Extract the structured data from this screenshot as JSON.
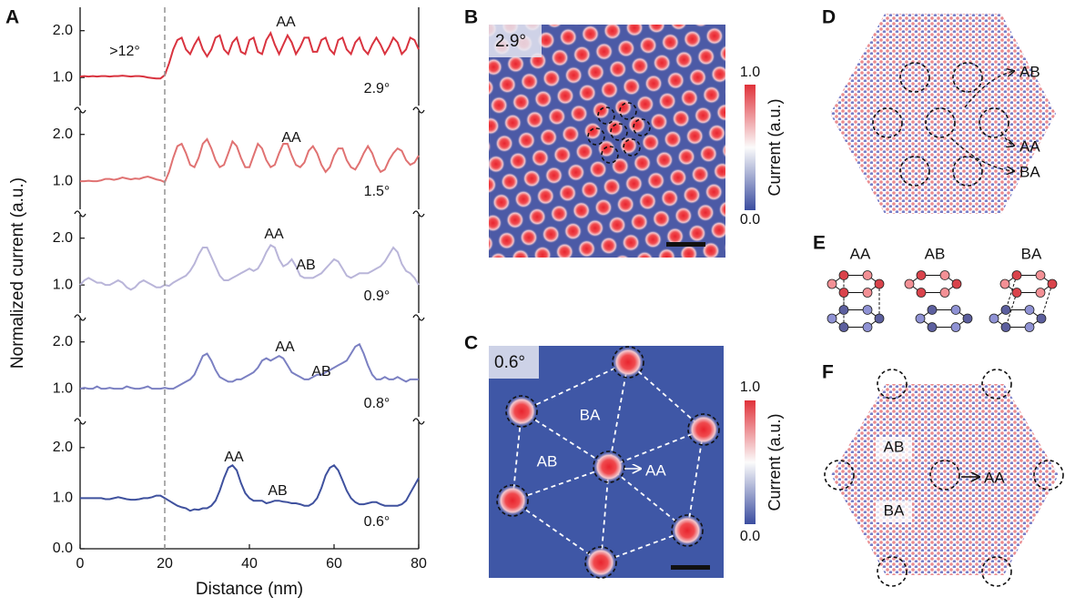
{
  "chart_data": {
    "type": "line",
    "label": "A",
    "xlabel": "Distance (nm)",
    "ylabel": "Normalized current (a.u.)",
    "xlim": [
      0,
      80
    ],
    "xticks": [
      0,
      20,
      40,
      60,
      80
    ],
    "vline": 20,
    "x": [
      0,
      1,
      2,
      3,
      4,
      5,
      6,
      7,
      8,
      9,
      10,
      11,
      12,
      13,
      14,
      15,
      16,
      17,
      18,
      19,
      20,
      21,
      22,
      23,
      24,
      25,
      26,
      27,
      28,
      29,
      30,
      31,
      32,
      33,
      34,
      35,
      36,
      37,
      38,
      39,
      40,
      41,
      42,
      43,
      44,
      45,
      46,
      47,
      48,
      49,
      50,
      51,
      52,
      53,
      54,
      55,
      56,
      57,
      58,
      59,
      60,
      61,
      62,
      63,
      64,
      65,
      66,
      67,
      68,
      69,
      70,
      71,
      72,
      73,
      74,
      75,
      76,
      77,
      78,
      79,
      80
    ],
    "series": [
      {
        "name": "2.9°",
        "color": "#d9333f",
        "ylim": [
          0.4,
          2.5
        ],
        "yticks": [
          {
            "value": 1,
            "label": "1.0"
          },
          {
            "value": 2,
            "label": "2.0"
          }
        ],
        "annotations": [
          ">12°",
          "AA"
        ],
        "values": [
          1.02,
          1.03,
          1.02,
          1.03,
          1.02,
          1.03,
          1.03,
          1.02,
          1.03,
          1.03,
          1.04,
          1.03,
          1.02,
          1.03,
          1.03,
          1.02,
          1.0,
          0.99,
          0.98,
          0.98,
          1.05,
          1.3,
          1.6,
          1.8,
          1.85,
          1.6,
          1.5,
          1.7,
          1.85,
          1.6,
          1.45,
          1.6,
          1.85,
          1.9,
          1.6,
          1.5,
          1.75,
          1.85,
          1.55,
          1.5,
          1.8,
          1.85,
          1.55,
          1.5,
          1.8,
          1.95,
          1.7,
          1.5,
          1.7,
          1.9,
          1.75,
          1.5,
          1.65,
          1.85,
          1.85,
          1.55,
          1.55,
          1.8,
          1.85,
          1.6,
          1.5,
          1.8,
          1.85,
          1.6,
          1.5,
          1.75,
          1.85,
          1.6,
          1.5,
          1.7,
          1.85,
          1.7,
          1.5,
          1.65,
          1.85,
          1.75,
          1.5,
          1.6,
          1.85,
          1.8,
          1.6
        ]
      },
      {
        "name": "1.5°",
        "color": "#e07272",
        "ylim": [
          0.4,
          2.5
        ],
        "yticks": [
          {
            "value": 1,
            "label": "1.0"
          },
          {
            "value": 2,
            "label": "2.0"
          }
        ],
        "annotations": [
          "AA"
        ],
        "values": [
          1.0,
          1.0,
          1.01,
          1.0,
          1.0,
          1.02,
          1.05,
          1.05,
          1.03,
          1.05,
          1.08,
          1.06,
          1.04,
          1.06,
          1.05,
          1.08,
          1.1,
          1.07,
          1.04,
          1.02,
          0.98,
          1.2,
          1.5,
          1.75,
          1.8,
          1.6,
          1.35,
          1.3,
          1.5,
          1.8,
          1.9,
          1.7,
          1.45,
          1.3,
          1.35,
          1.6,
          1.85,
          1.75,
          1.5,
          1.3,
          1.3,
          1.55,
          1.8,
          1.7,
          1.45,
          1.3,
          1.35,
          1.6,
          1.8,
          1.8,
          1.55,
          1.35,
          1.3,
          1.4,
          1.65,
          1.75,
          1.6,
          1.35,
          1.2,
          1.3,
          1.55,
          1.7,
          1.7,
          1.45,
          1.3,
          1.25,
          1.4,
          1.6,
          1.75,
          1.6,
          1.35,
          1.2,
          1.25,
          1.45,
          1.6,
          1.7,
          1.65,
          1.45,
          1.35,
          1.4,
          1.55
        ]
      },
      {
        "name": "0.9°",
        "color": "#b9b5d9",
        "ylim": [
          0.4,
          2.5
        ],
        "yticks": [
          {
            "value": 1,
            "label": "1.0"
          },
          {
            "value": 2,
            "label": "2.0"
          }
        ],
        "annotations": [
          "AA",
          "AB"
        ],
        "values": [
          1.0,
          1.1,
          1.15,
          1.1,
          1.05,
          1.05,
          1.0,
          1.0,
          1.05,
          1.1,
          1.05,
          0.95,
          0.9,
          0.95,
          1.05,
          1.1,
          1.05,
          1.0,
          0.95,
          0.95,
          1.0,
          0.98,
          1.05,
          1.1,
          1.15,
          1.2,
          1.3,
          1.45,
          1.65,
          1.8,
          1.8,
          1.6,
          1.4,
          1.2,
          1.1,
          1.1,
          1.15,
          1.2,
          1.25,
          1.3,
          1.35,
          1.3,
          1.35,
          1.5,
          1.7,
          1.85,
          1.8,
          1.55,
          1.4,
          1.45,
          1.55,
          1.4,
          1.2,
          1.15,
          1.15,
          1.15,
          1.2,
          1.25,
          1.35,
          1.45,
          1.55,
          1.5,
          1.35,
          1.2,
          1.15,
          1.2,
          1.25,
          1.25,
          1.25,
          1.3,
          1.35,
          1.4,
          1.5,
          1.65,
          1.8,
          1.7,
          1.45,
          1.3,
          1.25,
          1.15,
          1.0
        ]
      },
      {
        "name": "0.8°",
        "color": "#7b80c2",
        "ylim": [
          0.4,
          2.5
        ],
        "yticks": [
          {
            "value": 1,
            "label": "1.0"
          },
          {
            "value": 2,
            "label": "2.0"
          }
        ],
        "annotations": [
          "AA",
          "AB"
        ],
        "values": [
          1.0,
          1.02,
          1.0,
          1.0,
          1.05,
          1.0,
          1.0,
          1.02,
          1.0,
          1.0,
          1.0,
          1.05,
          1.02,
          1.0,
          1.0,
          1.02,
          1.05,
          1.0,
          1.0,
          1.0,
          1.02,
          1.0,
          1.0,
          1.05,
          1.1,
          1.15,
          1.2,
          1.3,
          1.5,
          1.7,
          1.75,
          1.6,
          1.4,
          1.25,
          1.2,
          1.15,
          1.15,
          1.2,
          1.2,
          1.25,
          1.3,
          1.35,
          1.45,
          1.6,
          1.65,
          1.6,
          1.65,
          1.7,
          1.65,
          1.5,
          1.35,
          1.3,
          1.25,
          1.2,
          1.2,
          1.25,
          1.3,
          1.3,
          1.35,
          1.4,
          1.45,
          1.5,
          1.55,
          1.6,
          1.75,
          1.9,
          1.95,
          1.75,
          1.5,
          1.3,
          1.2,
          1.2,
          1.25,
          1.2,
          1.2,
          1.25,
          1.2,
          1.15,
          1.2,
          1.2,
          1.2
        ]
      },
      {
        "name": "0.6°",
        "color": "#3f519e",
        "ylim": [
          0,
          2.5
        ],
        "yticks": [
          {
            "value": 0,
            "label": "0.0"
          },
          {
            "value": 1,
            "label": "1.0"
          },
          {
            "value": 2,
            "label": "2.0"
          }
        ],
        "annotations": [
          "AA",
          "AB"
        ],
        "values": [
          1.0,
          1.0,
          1.0,
          1.0,
          1.0,
          1.0,
          0.98,
          0.98,
          1.0,
          1.02,
          1.0,
          0.98,
          0.97,
          0.97,
          0.98,
          1.0,
          1.0,
          1.02,
          1.05,
          1.05,
          1.0,
          0.95,
          0.9,
          0.85,
          0.82,
          0.8,
          0.75,
          0.78,
          0.77,
          0.8,
          0.8,
          0.85,
          0.95,
          1.15,
          1.4,
          1.6,
          1.65,
          1.55,
          1.3,
          1.1,
          1.0,
          0.95,
          0.95,
          0.95,
          0.9,
          0.92,
          0.95,
          0.95,
          0.93,
          0.92,
          0.9,
          0.9,
          0.88,
          0.85,
          0.85,
          0.9,
          1.0,
          1.2,
          1.45,
          1.6,
          1.65,
          1.55,
          1.35,
          1.15,
          1.0,
          0.92,
          0.88,
          0.88,
          0.9,
          0.92,
          0.92,
          0.88,
          0.85,
          0.85,
          0.85,
          0.85,
          0.88,
          0.95,
          1.1,
          1.25,
          1.4
        ]
      }
    ]
  },
  "panel_b": {
    "label": "B",
    "angle": "2.9°",
    "colorbar": {
      "max": "1.0",
      "min": "0.0",
      "title": "Current (a.u.)"
    }
  },
  "panel_c": {
    "label": "C",
    "angle": "0.6°",
    "regions": [
      "BA",
      "AB",
      "AA"
    ],
    "colorbar": {
      "max": "1.0",
      "min": "0.0",
      "title": "Current (a.u.)"
    }
  },
  "panel_d": {
    "label": "D",
    "stackings": [
      "AB",
      "AA",
      "BA"
    ]
  },
  "panel_e": {
    "label": "E",
    "stackings": [
      "AA",
      "AB",
      "BA"
    ]
  },
  "panel_f": {
    "label": "F",
    "regions": [
      "AB",
      "AA",
      "BA"
    ]
  }
}
